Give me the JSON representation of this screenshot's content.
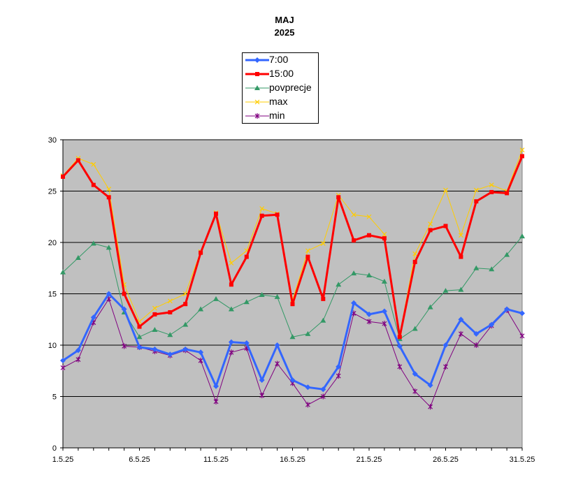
{
  "chart_data": {
    "type": "line",
    "title": "MAJ",
    "subtitle": "2025",
    "ylim": [
      0,
      30
    ],
    "y_ticks": [
      "0",
      "5",
      "10",
      "15",
      "20",
      "25",
      "30"
    ],
    "x": [
      "1.5.25",
      "2.5.25",
      "3.5.25",
      "4.5.25",
      "5.5.25",
      "6.5.25",
      "7.5.25",
      "8.5.25",
      "9.5.25",
      "10.5.25",
      "11.5.25",
      "12.5.25",
      "13.5.25",
      "14.5.25",
      "15.5.25",
      "16.5.25",
      "17.5.25",
      "18.5.25",
      "19.5.25",
      "20.5.25",
      "21.5.25",
      "22.5.25",
      "23.5.25",
      "24.5.25",
      "25.5.25",
      "26.5.25",
      "27.5.25",
      "28.5.25",
      "29.5.25",
      "30.5.25",
      "31.5.25"
    ],
    "x_tick_labels": [
      "1.5.25",
      "6.5.25",
      "11.5.25",
      "16.5.25",
      "21.5.25",
      "26.5.25",
      "31.5.25"
    ],
    "grid": true,
    "legend_position": "top-center",
    "plot_background": "#c0c0c0",
    "series": [
      {
        "name": "7:00",
        "color": "#3366ff",
        "marker": "diamond",
        "values": [
          8.5,
          9.5,
          12.7,
          15.0,
          13.5,
          9.8,
          9.6,
          9.1,
          9.6,
          9.3,
          6.0,
          10.3,
          10.2,
          6.6,
          10.0,
          6.6,
          5.9,
          5.7,
          7.9,
          14.1,
          13.0,
          13.3,
          9.9,
          7.2,
          6.1,
          10.0,
          12.5,
          11.1,
          12.0,
          13.5,
          13.1
        ]
      },
      {
        "name": "15:00",
        "color": "#ff0000",
        "marker": "square",
        "values": [
          26.4,
          28.0,
          25.6,
          24.4,
          15.0,
          11.8,
          13.0,
          13.2,
          14.0,
          19.0,
          22.8,
          15.9,
          18.6,
          22.6,
          22.7,
          14.0,
          18.6,
          14.5,
          24.4,
          20.2,
          20.7,
          20.4,
          10.8,
          18.1,
          21.2,
          21.6,
          18.6,
          24.0,
          24.9,
          24.8,
          28.4
        ]
      },
      {
        "name": "povprecje",
        "color": "#339966",
        "marker": "triangle",
        "values": [
          17.1,
          18.5,
          19.9,
          19.5,
          13.2,
          10.8,
          11.5,
          11.0,
          12.0,
          13.5,
          14.5,
          13.5,
          14.2,
          14.9,
          14.7,
          10.8,
          11.1,
          12.4,
          15.9,
          17.0,
          16.8,
          16.2,
          10.6,
          11.6,
          13.7,
          15.3,
          15.4,
          17.5,
          17.4,
          18.8,
          20.6
        ]
      },
      {
        "name": "max",
        "color": "#ffcc00",
        "marker": "x",
        "values": [
          26.5,
          28.2,
          27.6,
          25.2,
          15.9,
          12.3,
          13.6,
          14.3,
          15.0,
          19.1,
          22.9,
          18.0,
          19.2,
          23.3,
          22.8,
          14.4,
          19.2,
          19.9,
          24.6,
          22.7,
          22.5,
          20.8,
          11.0,
          18.9,
          21.8,
          25.1,
          20.7,
          25.1,
          25.6,
          25.0,
          29.0
        ]
      },
      {
        "name": "min",
        "color": "#800080",
        "marker": "star",
        "values": [
          7.8,
          8.6,
          12.2,
          14.5,
          9.9,
          9.8,
          9.4,
          9.0,
          9.5,
          8.5,
          4.5,
          9.3,
          9.7,
          5.1,
          8.2,
          6.3,
          4.2,
          5.0,
          7.0,
          13.1,
          12.3,
          12.1,
          7.9,
          5.5,
          4.0,
          7.9,
          11.1,
          10.0,
          11.9,
          13.4,
          10.9
        ]
      }
    ]
  }
}
